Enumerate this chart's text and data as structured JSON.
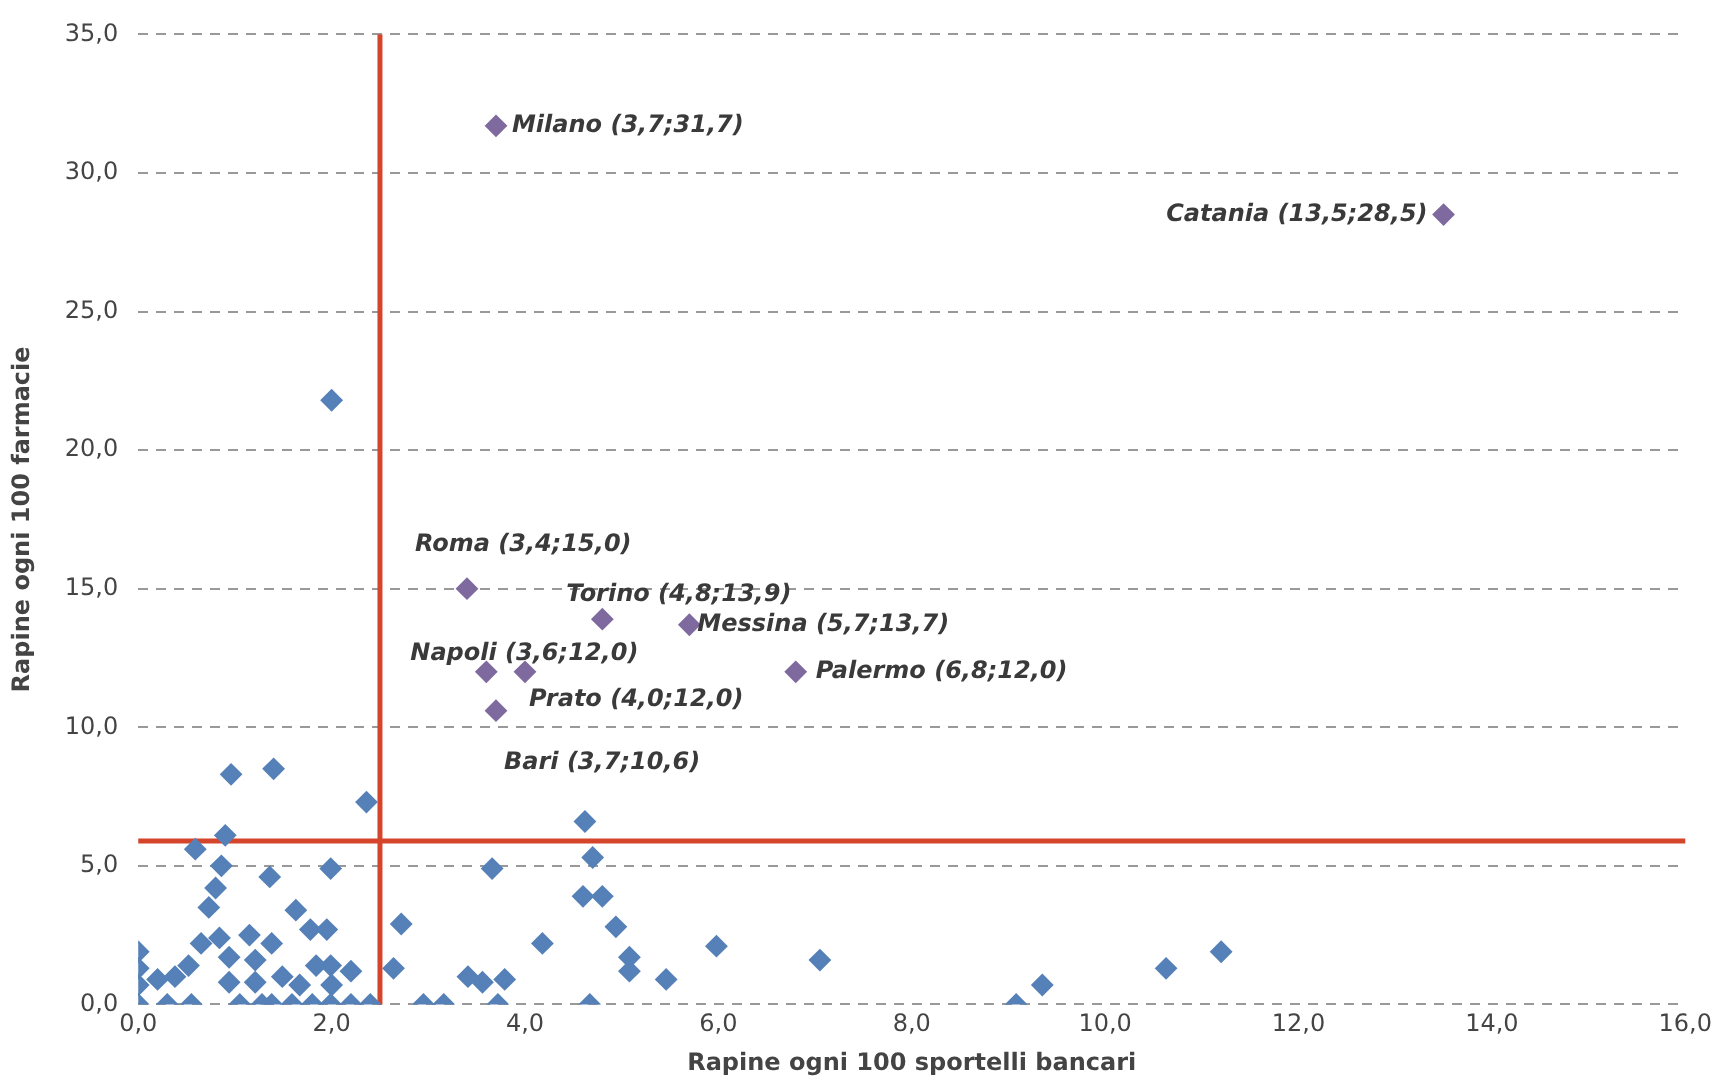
{
  "chart_data": {
    "type": "scatter",
    "xlabel": "Rapine ogni 100 sportelli bancari",
    "ylabel": "Rapine ogni 100 farmacie",
    "xlim": [
      0,
      16
    ],
    "xticks": [
      {
        "value": 0,
        "label": "0,0"
      },
      {
        "value": 2,
        "label": "2,0"
      },
      {
        "value": 4,
        "label": "4,0"
      },
      {
        "value": 6,
        "label": "6,0"
      },
      {
        "value": 8,
        "label": "8,0"
      },
      {
        "value": 10,
        "label": "10,0"
      },
      {
        "value": 12,
        "label": "12,0"
      },
      {
        "value": 14,
        "label": "14,0"
      },
      {
        "value": 16,
        "label": "16,0"
      }
    ],
    "ylim": [
      0,
      35
    ],
    "yticks": [
      {
        "value": 0,
        "label": "0,0"
      },
      {
        "value": 5,
        "label": "5,0"
      },
      {
        "value": 10,
        "label": "10,0"
      },
      {
        "value": 15,
        "label": "15,0"
      },
      {
        "value": 20,
        "label": "20,0"
      },
      {
        "value": 25,
        "label": "25,0"
      },
      {
        "value": 30,
        "label": "30,0"
      },
      {
        "value": 35,
        "label": "35,0"
      }
    ],
    "grid": "y",
    "legend": false,
    "marker": "diamond",
    "series": [
      {
        "color": "#5580b8",
        "x": [
          2.0,
          0.96,
          1.4,
          2.36,
          0.59,
          0.9,
          0.86,
          1.36,
          1.99,
          0.8,
          0.73,
          4.62,
          4.7,
          4.6,
          4.8,
          4.94,
          5.08,
          5.08,
          3.66,
          2.72,
          2.64,
          4.18,
          3.41,
          3.56,
          3.79,
          3.72,
          4.67,
          2.95,
          3.16,
          2.4,
          2.2,
          2.2,
          5.98,
          7.05,
          9.08,
          9.35,
          10.63,
          11.2,
          5.46,
          0,
          0,
          0,
          0,
          0.2,
          0.38,
          0.52,
          0.55,
          0.3,
          0.65,
          0.84,
          0.94,
          0.94,
          1.15,
          1.21,
          1.05,
          1.38,
          1.38,
          1.49,
          1.63,
          1.78,
          1.84,
          1.95,
          1.99,
          2.0,
          1.59,
          1.8,
          1.99,
          1.28,
          1.21,
          1.67
        ],
        "values": [
          21.8,
          8.3,
          8.5,
          7.3,
          5.6,
          6.1,
          5.0,
          4.6,
          4.9,
          4.2,
          3.5,
          6.6,
          5.3,
          3.9,
          3.9,
          2.8,
          1.7,
          1.2,
          4.9,
          2.9,
          1.3,
          2.2,
          1.0,
          0.8,
          0.9,
          0,
          0,
          0,
          0,
          0,
          0,
          1.2,
          2.1,
          1.6,
          0,
          0.7,
          1.3,
          1.9,
          0.9,
          1.9,
          1.3,
          0.7,
          0,
          0.9,
          1.0,
          1.4,
          0,
          0,
          2.2,
          2.4,
          1.7,
          0.8,
          2.5,
          1.6,
          0,
          2.2,
          0,
          1.0,
          3.4,
          2.7,
          1.4,
          2.7,
          1.4,
          0.7,
          0,
          0,
          0,
          0,
          0.8,
          0.7
        ]
      },
      {
        "color": "#7e6a9e",
        "x": [
          3.7,
          13.5,
          3.4,
          4.8,
          5.7,
          3.6,
          4.0,
          6.8,
          3.7
        ],
        "values": [
          31.7,
          28.5,
          15.0,
          13.9,
          13.7,
          12.0,
          12.0,
          12.0,
          10.6
        ]
      }
    ],
    "ref_lines": [
      {
        "axis": "x",
        "value": 2.5,
        "color": "#d5452b"
      },
      {
        "axis": "y",
        "value": 5.9,
        "color": "#d5452b"
      }
    ],
    "annotations": [
      {
        "text": "Milano (3,7;31,7)",
        "x": 3.7,
        "y": 31.7
      },
      {
        "text": "Catania (13,5;28,5)",
        "x": 13.5,
        "y": 28.5
      },
      {
        "text": "Roma (3,4;15,0)",
        "x": 3.4,
        "y": 15.0
      },
      {
        "text": "Torino (4,8;13,9)",
        "x": 4.8,
        "y": 13.9
      },
      {
        "text": "Messina (5,7;13,7)",
        "x": 5.7,
        "y": 13.7
      },
      {
        "text": "Napoli (3,6;12,0)",
        "x": 3.6,
        "y": 12.0
      },
      {
        "text": "Prato (4,0;12,0)",
        "x": 4.0,
        "y": 12.0
      },
      {
        "text": "Palermo (6,8;12,0)",
        "x": 6.8,
        "y": 12.0
      },
      {
        "text": "Bari (3,7;10,6)",
        "x": 3.7,
        "y": 10.6
      }
    ]
  }
}
